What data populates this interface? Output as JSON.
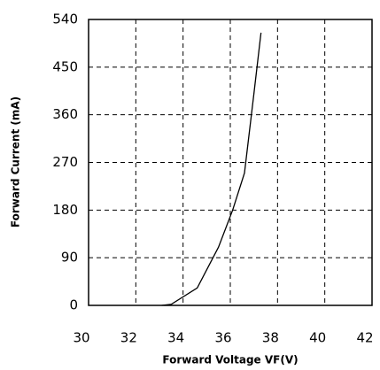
{
  "chart_data": {
    "type": "line",
    "x_label": "Forward Voltage  VF(V)",
    "y_label": "Forward Current (mA)",
    "x": [
      33.1,
      33.5,
      34.6,
      35.5,
      36.1,
      36.6,
      37.0,
      37.3
    ],
    "values": [
      0,
      2,
      33,
      110,
      180,
      250,
      400,
      515
    ],
    "color": "#000000",
    "xlim": [
      30,
      42
    ],
    "xticks": [
      30,
      32,
      34,
      36,
      38,
      40,
      42
    ],
    "ylim": [
      0,
      540
    ],
    "yticks": [
      0,
      90,
      180,
      270,
      360,
      450,
      540
    ],
    "grid": true
  }
}
